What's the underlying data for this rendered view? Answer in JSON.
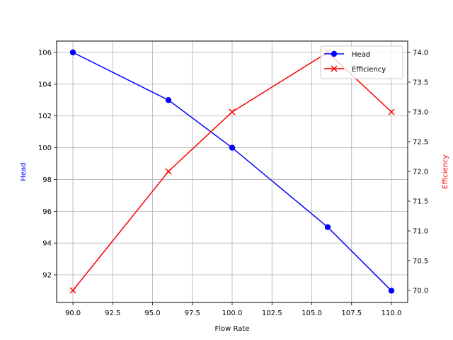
{
  "chart_data": {
    "type": "line",
    "title": "",
    "xlabel": "Flow Rate",
    "ylabel_left": "Head",
    "ylabel_right": "Efficiency",
    "x": [
      90,
      96,
      100,
      106,
      110
    ],
    "series": [
      {
        "name": "Head",
        "axis": "left",
        "color": "#0000ff",
        "marker": "o",
        "values": [
          106,
          103,
          100,
          95,
          91
        ]
      },
      {
        "name": "Efficiency",
        "axis": "right",
        "color": "#ff0000",
        "marker": "x",
        "values": [
          70,
          72,
          73,
          74,
          73
        ]
      }
    ],
    "xlim": [
      89,
      111
    ],
    "ylim_left": [
      90.25,
      106.75
    ],
    "ylim_right": [
      69.85,
      74.2
    ],
    "xticks": [
      "90.0",
      "92.5",
      "95.0",
      "97.5",
      "100.0",
      "102.5",
      "105.0",
      "107.5",
      "110.0"
    ],
    "yticks_left": [
      "92",
      "94",
      "96",
      "98",
      "100",
      "102",
      "104",
      "106"
    ],
    "yticks_right": [
      "70.0",
      "70.5",
      "71.0",
      "71.5",
      "72.0",
      "72.5",
      "73.0",
      "73.5",
      "74.0"
    ],
    "grid": true,
    "legend_position": "upper right"
  },
  "legend": {
    "items": [
      "Head",
      "Efficiency"
    ]
  }
}
